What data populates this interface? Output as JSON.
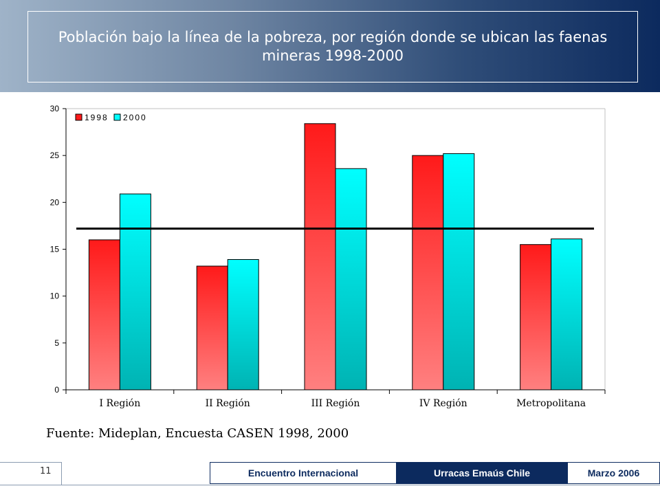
{
  "slide": {
    "title": "Población bajo la línea de la pobreza,  por región donde se ubican las faenas mineras 1998-2000",
    "source": "Fuente: Mideplan, Encuesta CASEN 1998, 2000",
    "page_number": "11"
  },
  "footer": {
    "left": "Encuentro Internacional",
    "center": "Urracas Emaús Chile",
    "right": "Marzo 2006"
  },
  "colors": {
    "series_1998": "#ff1a1a",
    "series_2000": "#00ffff",
    "header_dark": "#0c2a5e"
  },
  "chart_data": {
    "type": "bar",
    "categories": [
      "I Región",
      "II Región",
      "III Región",
      "IV Región",
      "Metropolitana"
    ],
    "series": [
      {
        "name": "1998",
        "values": [
          16.0,
          13.2,
          28.4,
          25.0,
          15.5
        ]
      },
      {
        "name": "2000",
        "values": [
          20.9,
          13.9,
          23.6,
          25.2,
          16.1
        ]
      }
    ],
    "reference_line": 17.2,
    "ylim": [
      0,
      30
    ],
    "yticks": [
      0,
      5,
      10,
      15,
      20,
      25,
      30
    ],
    "legend": "top-left",
    "grid": false
  }
}
